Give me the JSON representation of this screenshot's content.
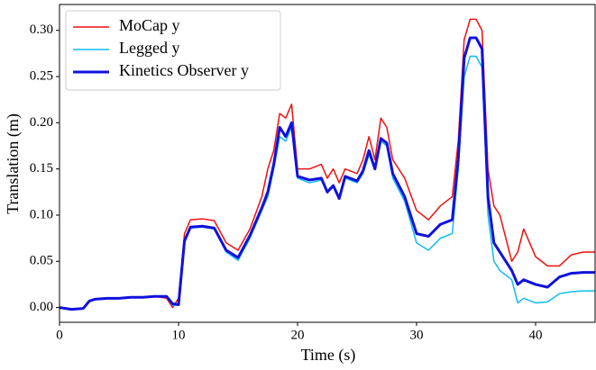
{
  "chart_data": {
    "type": "line",
    "xlabel": "Time (s)",
    "ylabel": "Translation (m)",
    "x": [
      0,
      1,
      2,
      2.5,
      3,
      4,
      5,
      6,
      7,
      8,
      9,
      9.5,
      10,
      10.5,
      11,
      12,
      13,
      14,
      15,
      16,
      17,
      17.5,
      18,
      18.5,
      19,
      19.5,
      20,
      21,
      22,
      22.5,
      23,
      23.5,
      24,
      25,
      25.5,
      26,
      26.5,
      27,
      27.5,
      28,
      29,
      30,
      31,
      32,
      33,
      33.5,
      34,
      34.5,
      35,
      35.5,
      36,
      36.5,
      37,
      38,
      38.5,
      39,
      40,
      41,
      42,
      43,
      44,
      45
    ],
    "series": [
      {
        "name": "MoCap y",
        "color": "#ee1111",
        "width": 1.5,
        "values": [
          0,
          -0.002,
          -0.001,
          0.007,
          0.009,
          0.01,
          0.01,
          0.011,
          0.011,
          0.012,
          0.01,
          0.0,
          0.01,
          0.08,
          0.095,
          0.096,
          0.094,
          0.07,
          0.062,
          0.085,
          0.12,
          0.15,
          0.17,
          0.21,
          0.205,
          0.22,
          0.15,
          0.15,
          0.155,
          0.14,
          0.15,
          0.135,
          0.15,
          0.145,
          0.16,
          0.185,
          0.16,
          0.205,
          0.195,
          0.16,
          0.14,
          0.105,
          0.095,
          0.11,
          0.12,
          0.18,
          0.29,
          0.312,
          0.312,
          0.3,
          0.15,
          0.11,
          0.1,
          0.05,
          0.06,
          0.085,
          0.055,
          0.045,
          0.045,
          0.057,
          0.06,
          0.06
        ]
      },
      {
        "name": "Legged y",
        "color": "#11bbee",
        "width": 1.5,
        "values": [
          0,
          -0.002,
          -0.001,
          0.007,
          0.009,
          0.01,
          0.01,
          0.011,
          0.011,
          0.012,
          0.012,
          0.002,
          0.003,
          0.07,
          0.086,
          0.087,
          0.085,
          0.06,
          0.051,
          0.075,
          0.105,
          0.12,
          0.15,
          0.185,
          0.18,
          0.195,
          0.14,
          0.135,
          0.138,
          0.125,
          0.13,
          0.12,
          0.14,
          0.135,
          0.145,
          0.165,
          0.15,
          0.18,
          0.175,
          0.14,
          0.115,
          0.07,
          0.062,
          0.075,
          0.08,
          0.15,
          0.25,
          0.272,
          0.272,
          0.26,
          0.1,
          0.05,
          0.04,
          0.03,
          0.005,
          0.01,
          0.005,
          0.006,
          0.015,
          0.017,
          0.018,
          0.018
        ]
      },
      {
        "name": "Kinetics Observer y",
        "color": "#1111dd",
        "width": 3,
        "values": [
          0,
          -0.002,
          -0.001,
          0.007,
          0.009,
          0.01,
          0.01,
          0.011,
          0.011,
          0.012,
          0.012,
          0.004,
          0.003,
          0.072,
          0.087,
          0.088,
          0.086,
          0.062,
          0.054,
          0.078,
          0.108,
          0.125,
          0.155,
          0.195,
          0.185,
          0.2,
          0.142,
          0.138,
          0.14,
          0.125,
          0.132,
          0.118,
          0.142,
          0.137,
          0.148,
          0.17,
          0.15,
          0.183,
          0.178,
          0.145,
          0.12,
          0.08,
          0.077,
          0.09,
          0.095,
          0.16,
          0.27,
          0.292,
          0.292,
          0.28,
          0.12,
          0.07,
          0.06,
          0.04,
          0.025,
          0.03,
          0.025,
          0.022,
          0.033,
          0.037,
          0.038,
          0.038
        ]
      }
    ],
    "xlim": [
      0,
      45
    ],
    "ylim": [
      -0.016,
      0.328
    ],
    "xticks": [
      0,
      10,
      20,
      30,
      40
    ],
    "yticks": [
      {
        "value": 0,
        "label": "0.00"
      },
      {
        "value": 0.05,
        "label": "0.05"
      },
      {
        "value": 0.1,
        "label": "0.10"
      },
      {
        "value": 0.15,
        "label": "0.15"
      },
      {
        "value": 0.2,
        "label": "0.20"
      },
      {
        "value": 0.25,
        "label": "0.25"
      },
      {
        "value": 0.3,
        "label": "0.30"
      }
    ],
    "legend": "upper left"
  }
}
